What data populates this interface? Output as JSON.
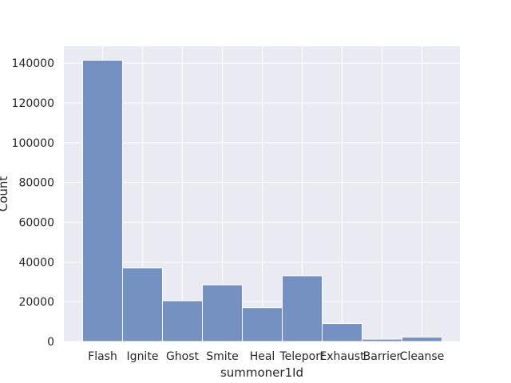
{
  "chart_data": {
    "type": "bar",
    "title": "",
    "xlabel": "summoner1Id",
    "ylabel": "Count",
    "categories": [
      "Flash",
      "Ignite",
      "Ghost",
      "Smite",
      "Heal",
      "Teleport",
      "Exhaust",
      "Barrier",
      "Cleanse"
    ],
    "values": [
      141500,
      37000,
      20500,
      28500,
      17000,
      33000,
      9000,
      1200,
      2200
    ],
    "ylim": [
      0,
      148500
    ],
    "yticks": [
      0,
      20000,
      40000,
      60000,
      80000,
      100000,
      120000,
      140000
    ],
    "ytick_labels": [
      "0",
      "20000",
      "40000",
      "60000",
      "80000",
      "100000",
      "120000",
      "140000"
    ],
    "grid": true,
    "colors": {
      "bar": "#7491c2",
      "bar_edge": "#ffffff",
      "plot_background": "#eaeaf2",
      "grid": "#ffffff"
    }
  }
}
